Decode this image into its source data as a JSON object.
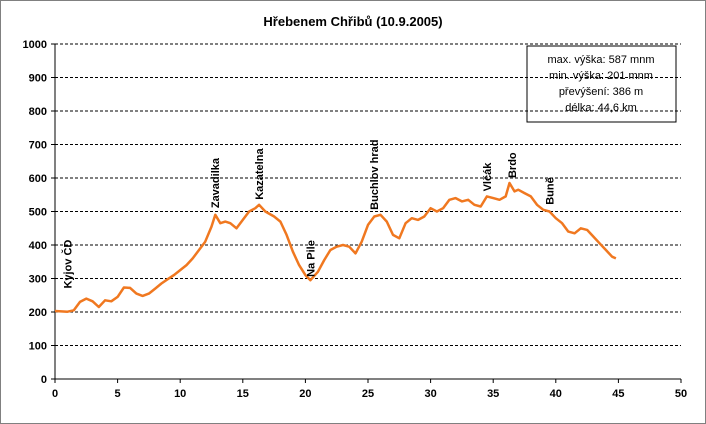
{
  "chart_data": {
    "type": "line",
    "title": "Hřebenem Chřibů (10.9.2005)",
    "x": [
      0,
      1,
      1.5,
      2,
      2.5,
      3,
      3.5,
      4,
      4.5,
      5,
      5.5,
      6,
      6.5,
      7,
      7.5,
      8,
      8.5,
      9,
      9.5,
      10,
      10.5,
      11,
      11.5,
      12,
      12.5,
      12.8,
      13.2,
      13.6,
      14,
      14.5,
      15,
      15.5,
      16,
      16.3,
      16.8,
      17.5,
      18,
      18.5,
      19,
      19.5,
      20,
      20.4,
      21,
      21.5,
      22,
      22.5,
      23,
      23.5,
      24,
      24.5,
      25,
      25.5,
      26,
      26.5,
      27,
      27.5,
      28,
      28.5,
      29,
      29.5,
      30,
      30.5,
      31,
      31.5,
      32,
      32.5,
      33,
      33.5,
      34,
      34.5,
      35,
      35.5,
      36,
      36.3,
      36.7,
      37,
      37.5,
      38,
      38.5,
      39,
      39.5,
      40,
      40.5,
      41,
      41.5,
      42,
      42.5,
      43,
      43.5,
      44,
      44.5,
      44.8
    ],
    "values": [
      203,
      201,
      205,
      230,
      240,
      232,
      215,
      235,
      232,
      245,
      273,
      272,
      255,
      248,
      255,
      270,
      285,
      298,
      310,
      325,
      340,
      360,
      385,
      410,
      455,
      490,
      465,
      470,
      465,
      450,
      475,
      500,
      510,
      520,
      500,
      485,
      470,
      430,
      380,
      340,
      310,
      295,
      320,
      355,
      385,
      395,
      400,
      395,
      375,
      410,
      460,
      485,
      490,
      470,
      430,
      420,
      465,
      480,
      475,
      485,
      510,
      500,
      510,
      535,
      540,
      530,
      535,
      520,
      515,
      545,
      540,
      535,
      545,
      585,
      560,
      565,
      555,
      545,
      520,
      505,
      500,
      480,
      465,
      440,
      435,
      450,
      445,
      425,
      405,
      385,
      365,
      360
    ],
    "color": "#f07820",
    "xlim": [
      0,
      50
    ],
    "xticks": [
      0,
      5,
      10,
      15,
      20,
      25,
      30,
      35,
      40,
      45,
      50
    ],
    "ylim": [
      0,
      1000
    ],
    "yticks": [
      0,
      100,
      200,
      300,
      400,
      500,
      600,
      700,
      800,
      900,
      1000
    ],
    "grid": true,
    "annotations": [
      {
        "text": "Kyjov ČD",
        "x": 1,
        "y": 270
      },
      {
        "text": "Zavadilka",
        "x": 12.8,
        "y": 510
      },
      {
        "text": "Kazatelna",
        "x": 16.3,
        "y": 535
      },
      {
        "text": "Na Pile",
        "x": 20.4,
        "y": 305
      },
      {
        "text": "Buchlov hrad",
        "x": 25.5,
        "y": 505
      },
      {
        "text": "Vlčák",
        "x": 34.5,
        "y": 560
      },
      {
        "text": "Brdo",
        "x": 36.5,
        "y": 600
      },
      {
        "text": "Buně",
        "x": 39.5,
        "y": 520
      }
    ],
    "info_box": [
      "max. výška: 587 mnm",
      "min. výška:  201 mnm",
      "převýšení: 386 m",
      "délka: 44,6 km"
    ]
  }
}
